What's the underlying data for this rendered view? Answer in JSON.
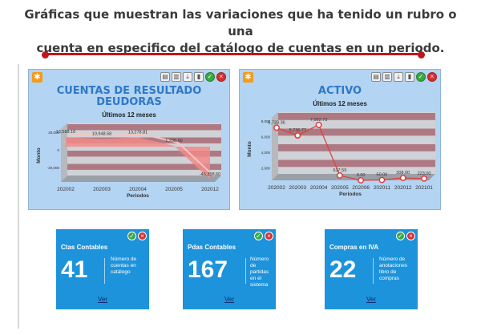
{
  "headline": {
    "line1": "Gráficas que muestran las variaciones que ha tenido un rubro o una",
    "line2": "cuenta en especifico del catálogo de cuentas en un periodo."
  },
  "panels": [
    {
      "title_line1": "CUENTAS DE RESULTADO",
      "title_line2": "DEUDORAS",
      "subtitle": "Últimos 12 meses"
    },
    {
      "title_line1": "ACTIVO",
      "title_line2": "",
      "subtitle": "Últimos 12 meses"
    }
  ],
  "chart_data": [
    {
      "type": "area",
      "title": "CUENTAS DE RESULTADO DEUDORAS",
      "subtitle": "Últimos 12 meses",
      "xlabel": "Periodos",
      "ylabel": "Monto",
      "categories": [
        "202002",
        "202003",
        "202004",
        "202005",
        "202012"
      ],
      "values": [
        13588.16,
        10948.58,
        13278.81,
        1235.6,
        -46358.6
      ],
      "data_labels": [
        "13,588.16",
        "10,948.58",
        "13,278.81",
        "1,235.60",
        "-46,358.60"
      ],
      "yticks": [
        "20,000",
        "0",
        "-20,000"
      ],
      "ylim": [
        -50000,
        25000
      ],
      "color": "#f28a8a"
    },
    {
      "type": "line",
      "title": "ACTIVO",
      "subtitle": "Últimos 12 meses",
      "xlabel": "Periodos",
      "ylabel": "Monto",
      "categories": [
        "202002",
        "202003",
        "202004",
        "202005",
        "202006",
        "202011",
        "202012",
        "202101"
      ],
      "values": [
        6733.36,
        5736.77,
        7092.73,
        617.59,
        0.0,
        50.0,
        308.0,
        223.0
      ],
      "data_labels": [
        "6,733.36",
        "5,736.77",
        "7,092.73",
        "617.59",
        "0.00",
        "50.00",
        "308.00",
        "223.00"
      ],
      "yticks": [
        "8,000",
        "6,000",
        "4,000",
        "2,000"
      ],
      "ylim": [
        0,
        8000
      ],
      "color": "#e23a3a"
    }
  ],
  "cards": [
    {
      "title": "Ctas Contables",
      "number": "41",
      "description": "Número de cuentas en catálogo",
      "link": "Ver"
    },
    {
      "title": "Pdas Contables",
      "number": "167",
      "description": "Número de partidas en el sistema",
      "link": "Ver"
    },
    {
      "title": "Compras en IVA",
      "number": "22",
      "description": "Número de anotaciones libro de compras",
      "link": "Ver"
    }
  ],
  "icons": {
    "ok": "check-icon",
    "close": "close-icon",
    "settings": "sun-icon"
  }
}
